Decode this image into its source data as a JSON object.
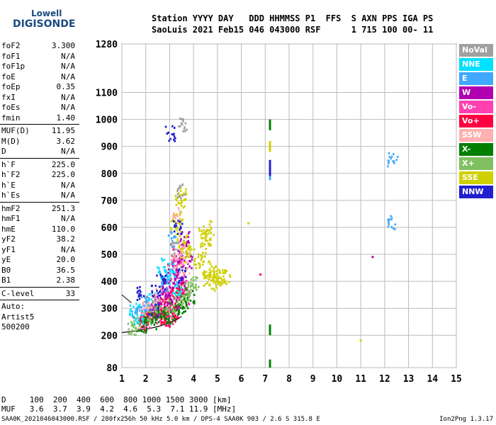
{
  "logo": {
    "line1": "Lowell",
    "line2": "DIGISONDE"
  },
  "header": {
    "line1": "Station YYYY DAY   DDD HHMMSS P1  FFS  S AXN PPS IGA PS",
    "line2": "SaoLuis 2021 Feb15 046 043000 RSF      1 715 100 00- 11"
  },
  "params_group1": [
    {
      "name": "foF2",
      "value": "3.300"
    },
    {
      "name": "foF1",
      "value": "N/A"
    },
    {
      "name": "foF1p",
      "value": "N/A"
    },
    {
      "name": "foE",
      "value": "N/A"
    },
    {
      "name": "foEp",
      "value": "0.35"
    },
    {
      "name": "fxI",
      "value": "N/A"
    },
    {
      "name": "foEs",
      "value": "N/A"
    },
    {
      "name": "fmin",
      "value": "1.40"
    }
  ],
  "params_group2": [
    {
      "name": "MUF(D)",
      "value": "11.95"
    },
    {
      "name": "M(D)",
      "value": "3.62"
    },
    {
      "name": "D",
      "value": "N/A"
    }
  ],
  "params_group3": [
    {
      "name": "h`F",
      "value": "225.0"
    },
    {
      "name": "h`F2",
      "value": "225.0"
    },
    {
      "name": "h`E",
      "value": "N/A"
    },
    {
      "name": "h`Es",
      "value": "N/A"
    }
  ],
  "params_group4": [
    {
      "name": "hmF2",
      "value": "251.3"
    },
    {
      "name": "hmF1",
      "value": "N/A"
    },
    {
      "name": "hmE",
      "value": "110.0"
    },
    {
      "name": "yF2",
      "value": "38.2"
    },
    {
      "name": "yF1",
      "value": "N/A"
    },
    {
      "name": "yE",
      "value": "20.0"
    },
    {
      "name": "B0",
      "value": "36.5"
    },
    {
      "name": "B1",
      "value": "2.38"
    }
  ],
  "params_group5": [
    {
      "name": "C-level",
      "value": "33"
    }
  ],
  "autoscale": {
    "line1": "Auto:",
    "line2": "Artist5",
    "line3": "500200"
  },
  "legend": [
    {
      "label": "NoVal",
      "color": "#a0a0a0"
    },
    {
      "label": "NNE",
      "color": "#00e0ff"
    },
    {
      "label": "E",
      "color": "#40a8ff"
    },
    {
      "label": "W",
      "color": "#b000b0"
    },
    {
      "label": "Vo-",
      "color": "#ff40b0"
    },
    {
      "label": "Vo+",
      "color": "#ff0040"
    },
    {
      "label": "SSW",
      "color": "#ffb0b0"
    },
    {
      "label": "X-",
      "color": "#008000"
    },
    {
      "label": "X+",
      "color": "#80c060"
    },
    {
      "label": "SSE",
      "color": "#d0d000"
    },
    {
      "label": "NNW",
      "color": "#2020d0"
    }
  ],
  "bottom_table": {
    "row1": "D     100  200  400  600  800 1000 1500 3000 [km]",
    "row2": "MUF   3.6  3.7  3.9  4.2  4.6  5.3  7.1 11.9 [MHz]"
  },
  "footer": {
    "left": "SAA0K_2021046043000.RSF / 280fx256h 50 kHz 5.0 km / DPS-4 SAA0K 903 / 2.6 S 315.8 E",
    "right": "Ion2Png 1.3.17"
  },
  "chart_data": {
    "type": "scatter",
    "xlim": [
      1,
      15
    ],
    "ylim": [
      80,
      1280
    ],
    "x_ticks": [
      1,
      2,
      3,
      4,
      5,
      6,
      7,
      8,
      9,
      10,
      11,
      12,
      13,
      14,
      15
    ],
    "y_ticks": [
      80,
      200,
      300,
      400,
      500,
      600,
      700,
      800,
      900,
      1000,
      1100,
      1280
    ],
    "grid": true,
    "legend_position": "right",
    "trace_curve": [
      [
        1.0,
        210
      ],
      [
        1.5,
        215
      ],
      [
        2.0,
        222
      ],
      [
        2.5,
        232
      ],
      [
        3.0,
        246
      ],
      [
        3.3,
        258
      ],
      [
        3.5,
        270
      ]
    ],
    "trace_curve2": [
      [
        1.0,
        350
      ],
      [
        1.2,
        335
      ],
      [
        1.4,
        320
      ]
    ],
    "clusters": [
      {
        "series": "Vo-",
        "points": [
          [
            2.2,
            280
          ],
          [
            2.4,
            300
          ],
          [
            2.6,
            320
          ],
          [
            2.8,
            350
          ],
          [
            3.0,
            380
          ],
          [
            3.1,
            420
          ],
          [
            3.2,
            460
          ],
          [
            3.3,
            500
          ],
          [
            2.0,
            260
          ],
          [
            1.8,
            250
          ],
          [
            2.5,
            270
          ],
          [
            3.4,
            440
          ],
          [
            3.5,
            380
          ],
          [
            3.6,
            340
          ],
          [
            2.9,
            300
          ],
          [
            3.0,
            260
          ],
          [
            3.2,
            300
          ],
          [
            2.7,
            290
          ]
        ]
      },
      {
        "series": "Vo+",
        "points": [
          [
            2.1,
            270
          ],
          [
            2.3,
            290
          ],
          [
            2.7,
            310
          ],
          [
            3.0,
            330
          ],
          [
            3.2,
            350
          ],
          [
            3.4,
            370
          ],
          [
            2.6,
            270
          ],
          [
            1.9,
            245
          ],
          [
            3.1,
            280
          ],
          [
            2.8,
            260
          ]
        ]
      },
      {
        "series": "W",
        "points": [
          [
            2.5,
            330
          ],
          [
            2.8,
            360
          ],
          [
            3.0,
            400
          ],
          [
            3.1,
            440
          ],
          [
            3.3,
            480
          ],
          [
            3.5,
            520
          ],
          [
            3.6,
            560
          ],
          [
            2.9,
            340
          ],
          [
            3.2,
            320
          ],
          [
            3.4,
            410
          ],
          [
            2.4,
            300
          ],
          [
            3.7,
            480
          ]
        ]
      },
      {
        "series": "X-",
        "points": [
          [
            2.0,
            260
          ],
          [
            2.4,
            275
          ],
          [
            2.8,
            290
          ],
          [
            3.2,
            300
          ],
          [
            3.5,
            310
          ],
          [
            1.8,
            240
          ],
          [
            2.2,
            255
          ],
          [
            3.0,
            270
          ],
          [
            3.6,
            330
          ],
          [
            3.8,
            350
          ],
          [
            2.6,
            280
          ]
        ]
      },
      {
        "series": "X+",
        "points": [
          [
            1.6,
            250
          ],
          [
            2.0,
            270
          ],
          [
            2.5,
            290
          ],
          [
            3.0,
            310
          ],
          [
            3.4,
            340
          ],
          [
            3.8,
            380
          ],
          [
            4.0,
            400
          ],
          [
            1.4,
            230
          ],
          [
            3.6,
            360
          ]
        ]
      },
      {
        "series": "SSE",
        "points": [
          [
            3.2,
            600
          ],
          [
            3.3,
            650
          ],
          [
            3.4,
            700
          ],
          [
            3.5,
            720
          ],
          [
            4.4,
            580
          ],
          [
            4.5,
            560
          ],
          [
            4.6,
            600
          ],
          [
            4.5,
            450
          ],
          [
            4.7,
            420
          ],
          [
            4.9,
            430
          ],
          [
            5.1,
            410
          ],
          [
            5.3,
            420
          ],
          [
            3.6,
            500
          ],
          [
            3.5,
            550
          ],
          [
            4.3,
            520
          ],
          [
            4.8,
            440
          ],
          [
            4.6,
            400
          ],
          [
            5.0,
            390
          ],
          [
            4.2,
            470
          ],
          [
            3.8,
            520
          ]
        ]
      },
      {
        "series": "NNE",
        "points": [
          [
            1.5,
            300
          ],
          [
            2.2,
            340
          ],
          [
            3.0,
            450
          ],
          [
            2.8,
            420
          ],
          [
            3.3,
            380
          ],
          [
            1.7,
            270
          ],
          [
            2.6,
            460
          ]
        ]
      },
      {
        "series": "E",
        "points": [
          [
            1.6,
            280
          ],
          [
            2.0,
            320
          ],
          [
            3.1,
            560
          ],
          [
            12.3,
            620
          ],
          [
            12.3,
            855
          ],
          [
            1.9,
            310
          ],
          [
            2.7,
            390
          ]
        ]
      },
      {
        "series": "NNW",
        "points": [
          [
            3.0,
            950
          ],
          [
            2.4,
            360
          ],
          [
            2.6,
            400
          ],
          [
            3.3,
            600
          ],
          [
            1.7,
            360
          ],
          [
            2.3,
            300
          ],
          [
            3.5,
            430
          ]
        ]
      },
      {
        "series": "SSW",
        "points": [
          [
            3.3,
            650
          ],
          [
            3.4,
            520
          ],
          [
            2.5,
            350
          ],
          [
            3.6,
            460
          ],
          [
            2.0,
            300
          ],
          [
            3.1,
            480
          ]
        ]
      },
      {
        "series": "NoVal",
        "points": [
          [
            3.5,
            980
          ],
          [
            3.4,
            740
          ],
          [
            3.2,
            520
          ],
          [
            2.2,
            320
          ]
        ]
      }
    ],
    "vertical_line_7_2": {
      "x": 7.2,
      "segments": [
        {
          "series": "X-",
          "y1": 960,
          "y2": 1000
        },
        {
          "series": "SSE",
          "y1": 880,
          "y2": 920
        },
        {
          "series": "NNW",
          "y1": 790,
          "y2": 850
        },
        {
          "series": "E",
          "y1": 775,
          "y2": 790
        },
        {
          "series": "X-",
          "y1": 200,
          "y2": 240
        },
        {
          "series": "X-",
          "y1": 80,
          "y2": 110
        }
      ]
    },
    "isolated_points": [
      {
        "series": "W",
        "x": 11.5,
        "y": 490
      },
      {
        "series": "SSE",
        "x": 11.0,
        "y": 180
      },
      {
        "series": "Vo+",
        "x": 6.8,
        "y": 425
      },
      {
        "series": "SSE",
        "x": 6.3,
        "y": 615
      }
    ]
  }
}
